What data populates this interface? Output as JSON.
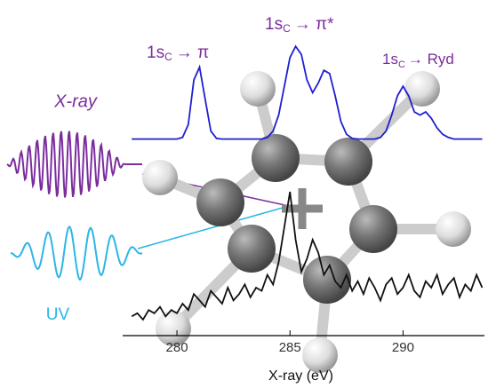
{
  "chart_data": {
    "type": "line",
    "x": [
      278,
      278.25,
      278.5,
      278.75,
      279,
      279.25,
      279.5,
      279.75,
      280,
      280.25,
      280.5,
      280.75,
      281,
      281.25,
      281.5,
      281.75,
      282,
      282.25,
      282.5,
      282.75,
      283,
      283.25,
      283.5,
      283.75,
      284,
      284.25,
      284.5,
      284.75,
      285,
      285.25,
      285.5,
      285.75,
      286,
      286.25,
      286.5,
      286.75,
      287,
      287.25,
      287.5,
      287.75,
      288,
      288.25,
      288.5,
      288.75,
      289,
      289.25,
      289.5,
      289.75,
      290,
      290.25,
      290.5,
      290.75,
      291,
      291.25,
      291.5,
      291.75,
      292,
      292.25,
      292.5,
      292.75,
      293,
      293.25,
      293.5
    ],
    "series": [
      {
        "color": "#1f1fd0",
        "values": [
          6.15,
          6.15,
          6.15,
          6.15,
          6.15,
          6.15,
          6.15,
          6.15,
          6.15,
          6.2,
          6.6,
          8.0,
          8.4,
          7.4,
          6.4,
          6.17,
          6.15,
          6.15,
          6.15,
          6.15,
          6.15,
          6.15,
          6.15,
          6.15,
          6.2,
          6.4,
          6.9,
          7.8,
          8.7,
          9.05,
          8.8,
          8.0,
          7.6,
          7.9,
          8.3,
          8.2,
          7.5,
          6.7,
          6.3,
          6.17,
          6.15,
          6.15,
          6.15,
          6.15,
          6.2,
          6.4,
          6.9,
          7.5,
          7.8,
          7.5,
          7.0,
          6.9,
          7.0,
          6.8,
          6.5,
          6.3,
          6.2,
          6.15,
          6.15,
          6.15,
          6.15,
          6.15,
          6.15
        ]
      },
      {
        "color": "#111111",
        "values": [
          0.6,
          0.7,
          0.5,
          0.8,
          0.7,
          0.9,
          0.6,
          0.8,
          0.7,
          1.0,
          0.8,
          1.3,
          1.1,
          0.9,
          1.4,
          1.2,
          1.0,
          1.5,
          1.1,
          1.3,
          1.6,
          1.2,
          1.5,
          1.4,
          1.9,
          1.6,
          2.3,
          3.4,
          4.5,
          3.0,
          2.0,
          2.4,
          3.0,
          2.6,
          1.9,
          2.2,
          1.7,
          1.5,
          1.9,
          1.4,
          1.7,
          1.3,
          1.8,
          1.5,
          1.1,
          1.6,
          1.8,
          1.3,
          1.5,
          1.9,
          1.4,
          1.2,
          1.7,
          1.5,
          1.9,
          1.3,
          1.6,
          1.8,
          1.2,
          1.6,
          1.4,
          1.9,
          1.5
        ]
      }
    ],
    "xlim": [
      277.6,
      293.6
    ],
    "xticks": [
      280,
      285,
      290
    ],
    "ylim": [
      0,
      10
    ],
    "xlabel": "X-ray (eV)"
  },
  "annotations": [
    {
      "parts": [
        "1s",
        "C",
        "→ π"
      ]
    },
    {
      "parts": [
        "1s",
        "C",
        "→ π*"
      ]
    },
    {
      "parts": [
        "1s",
        "C",
        "→ Ryd"
      ]
    }
  ],
  "labels": {
    "xray": "X-ray",
    "uv": "UV"
  }
}
